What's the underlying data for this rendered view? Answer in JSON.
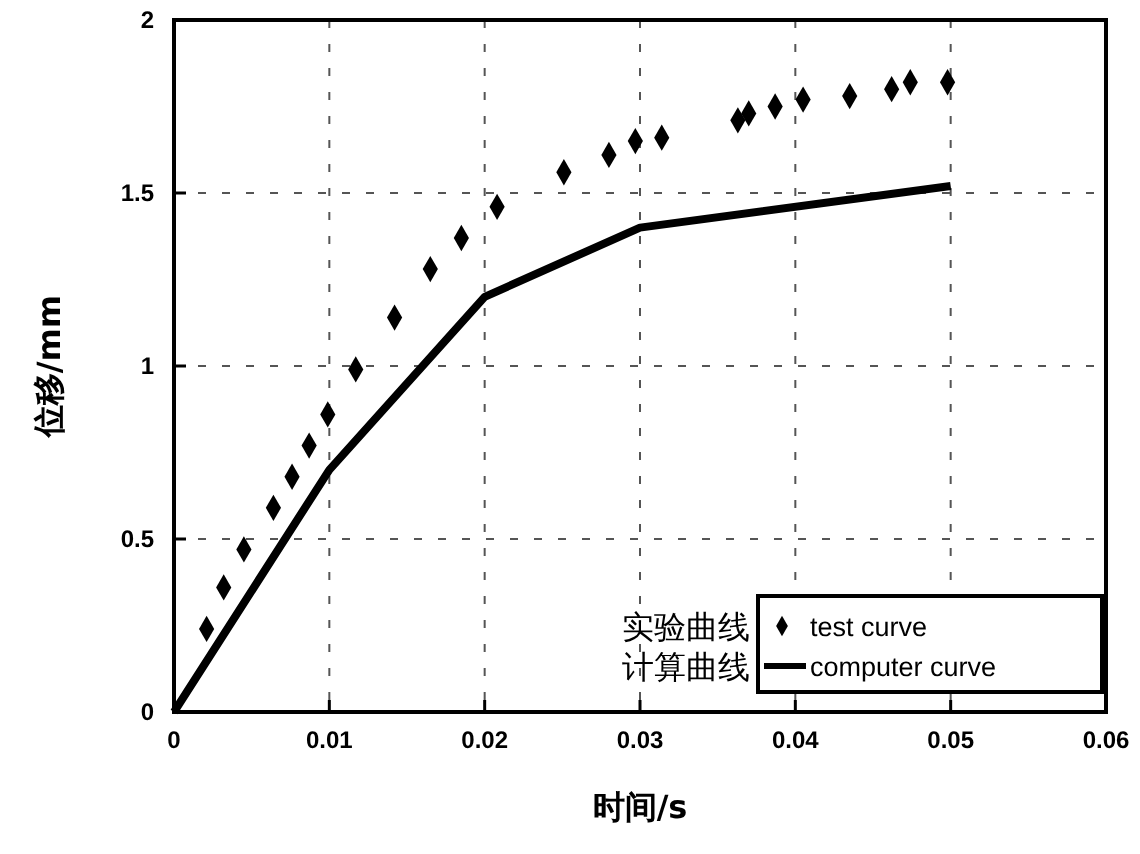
{
  "chart_data": {
    "type": "scatter",
    "xlabel": "时间/s",
    "ylabel": "位移/mm",
    "xlim": [
      0,
      0.06
    ],
    "ylim": [
      0,
      2
    ],
    "xticks": [
      0,
      0.01,
      0.02,
      0.03,
      0.04,
      0.05,
      0.06
    ],
    "yticks": [
      0,
      0.5,
      1,
      1.5,
      2
    ],
    "grid": true,
    "legend": "bottom right",
    "annotations": [
      "实验曲线",
      "计算曲线"
    ],
    "series": [
      {
        "name": "test curve",
        "marker": "diamond",
        "color": "#000000",
        "x": [
          0.0021,
          0.0032,
          0.0045,
          0.0064,
          0.0076,
          0.0087,
          0.0099,
          0.0117,
          0.0142,
          0.0165,
          0.0185,
          0.0208,
          0.0251,
          0.028,
          0.0297,
          0.0314,
          0.0363,
          0.037,
          0.0387,
          0.0405,
          0.0435,
          0.0462,
          0.0474,
          0.0498
        ],
        "values": [
          0.24,
          0.36,
          0.47,
          0.59,
          0.68,
          0.77,
          0.86,
          0.99,
          1.14,
          1.28,
          1.37,
          1.46,
          1.56,
          1.61,
          1.65,
          1.66,
          1.71,
          1.73,
          1.75,
          1.77,
          1.78,
          1.8,
          1.82,
          1.82
        ]
      },
      {
        "name": "computer curve",
        "type": "line",
        "marker": "none",
        "line_style": "solid",
        "color": "#000000",
        "x": [
          0,
          0.01,
          0.02,
          0.03,
          0.05
        ],
        "values": [
          0,
          0.7,
          1.2,
          1.4,
          1.52
        ]
      }
    ]
  }
}
